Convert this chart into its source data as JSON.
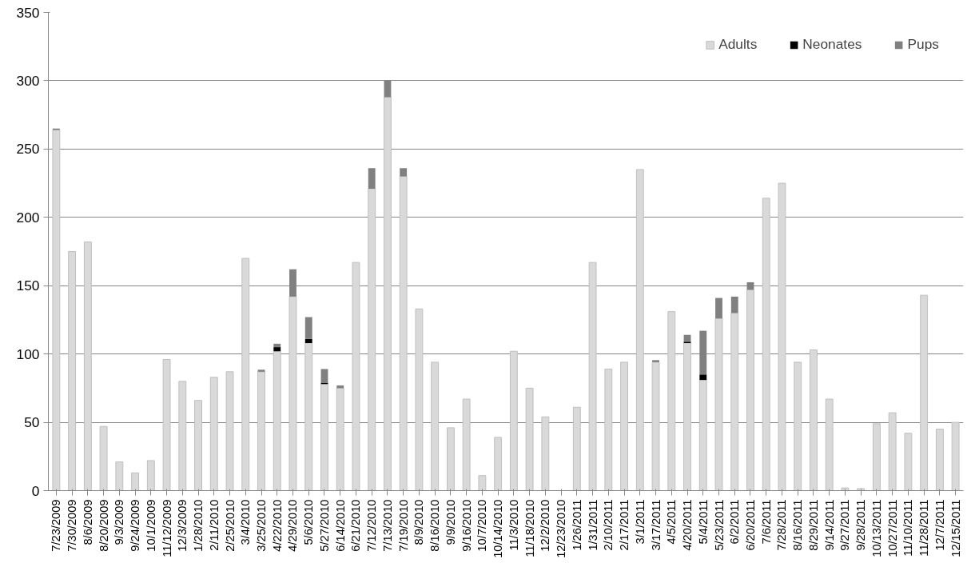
{
  "chart_data": {
    "type": "bar",
    "stacked": true,
    "legend": "top right",
    "grid": "y",
    "ylim": [
      0,
      350
    ],
    "yticks": [
      0,
      50,
      100,
      150,
      200,
      250,
      300,
      350
    ],
    "categories": [
      "7/23/2009",
      "7/30/2009",
      "8/6/2009",
      "8/20/2009",
      "9/3/2009",
      "9/24/2009",
      "10/1/2009",
      "11/12/2009",
      "12/3/2009",
      "1/28/2010",
      "2/11/2010",
      "2/25/2010",
      "3/4/2010",
      "3/25/2010",
      "4/22/2010",
      "4/29/2010",
      "5/6/2010",
      "5/27/2010",
      "6/14/2010",
      "6/21/2010",
      "7/12/2010",
      "7/13/2010",
      "7/19/2010",
      "8/9/2010",
      "8/16/2010",
      "9/9/2010",
      "9/16/2010",
      "10/7/2010",
      "10/14/2010",
      "11/3/2010",
      "11/18/2010",
      "12/2/2010",
      "12/23/2010",
      "1/26/2011",
      "1/31/2011",
      "2/10/2011",
      "2/17/2011",
      "3/1/2011",
      "3/17/2011",
      "4/5/2011",
      "4/20/2011",
      "5/4/2011",
      "5/23/2011",
      "6/2/2011",
      "6/20/2011",
      "7/6/2011",
      "7/28/2011",
      "8/16/2011",
      "8/29/2011",
      "9/14/2011",
      "9/27/2011",
      "9/28/2011",
      "10/13/2011",
      "10/27/2011",
      "11/10/2011",
      "11/28/2011",
      "12/7/2011",
      "12/15/2011"
    ],
    "series": [
      {
        "name": "Adults",
        "color": "#d9d9d9",
        "values": [
          264,
          175,
          182,
          47,
          21,
          13,
          22,
          96,
          80,
          66,
          83,
          87,
          170,
          87,
          102,
          142,
          108,
          78,
          75,
          167,
          221,
          288,
          230,
          133,
          94,
          46,
          67,
          11,
          39,
          102,
          75,
          54,
          0,
          61,
          167,
          89,
          94,
          235,
          94,
          131,
          108,
          81,
          126,
          130,
          147,
          214,
          225,
          94,
          103,
          67,
          2,
          1.5,
          49,
          57,
          42,
          143,
          45,
          50
        ]
      },
      {
        "name": "Neonates",
        "color": "#000000",
        "values": [
          0,
          0,
          0,
          0,
          0,
          0,
          0,
          0,
          0,
          0,
          0,
          0,
          0,
          0,
          3,
          0,
          3,
          1,
          0,
          0,
          0,
          0,
          0,
          0,
          0,
          0,
          0,
          0,
          0,
          0,
          0,
          0,
          0,
          0,
          0,
          0,
          0,
          0,
          0,
          0,
          1,
          4,
          0,
          0,
          0,
          0,
          0,
          0,
          0,
          0,
          0,
          0,
          0,
          0,
          0,
          0,
          0,
          0
        ]
      },
      {
        "name": "Pups",
        "color": "#808080",
        "values": [
          1,
          0,
          0,
          0,
          0,
          0,
          0,
          0,
          0,
          0,
          0,
          0,
          0,
          1.5,
          2.5,
          20,
          16,
          10,
          2,
          0,
          15,
          12,
          6,
          0,
          0,
          0,
          0,
          0,
          0,
          0,
          0,
          0,
          0,
          0,
          0,
          0,
          0,
          0,
          1.5,
          0,
          5,
          32,
          15,
          12,
          5.5,
          0,
          0,
          0,
          0,
          0,
          0,
          0,
          0,
          0,
          0,
          0,
          0,
          0
        ]
      }
    ]
  }
}
